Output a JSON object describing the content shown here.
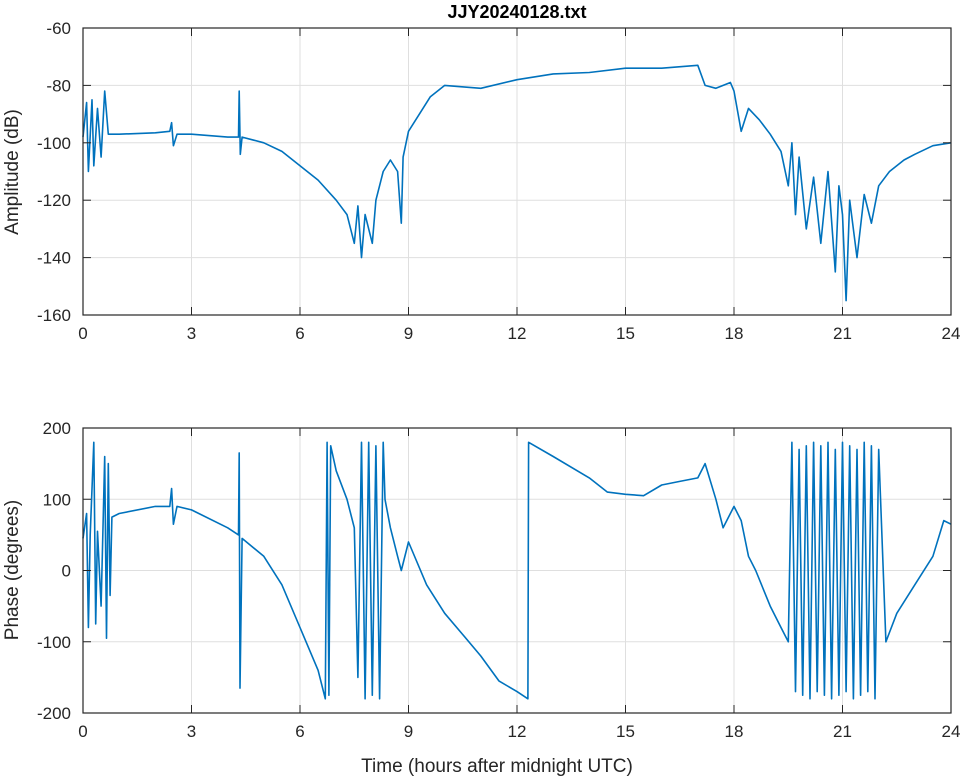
{
  "chart_data": [
    {
      "type": "line",
      "title": "JJY20240128.txt",
      "xlabel": "",
      "ylabel": "Amplitude (dB)",
      "xlim": [
        0,
        24
      ],
      "ylim": [
        -160,
        -60
      ],
      "xticks": [
        "0",
        "3",
        "6",
        "9",
        "12",
        "15",
        "18",
        "21",
        "24"
      ],
      "yticks": [
        "-60",
        "-80",
        "-100",
        "-120",
        "-140",
        "-160"
      ],
      "grid": true,
      "color": "#0072BD",
      "series": [
        {
          "name": "Amplitude",
          "x": [
            0,
            0.1,
            0.15,
            0.25,
            0.3,
            0.4,
            0.5,
            0.6,
            0.7,
            1,
            2,
            2.4,
            2.45,
            2.5,
            2.6,
            3,
            4,
            4.3,
            4.32,
            4.35,
            4.4,
            5,
            5.5,
            6,
            6.5,
            7,
            7.3,
            7.5,
            7.6,
            7.7,
            7.8,
            8,
            8.1,
            8.3,
            8.5,
            8.7,
            8.8,
            8.85,
            9,
            9.3,
            9.6,
            10,
            11,
            12,
            13,
            14,
            15,
            16,
            17,
            17.2,
            17.5,
            17.9,
            18,
            18.2,
            18.4,
            18.7,
            19,
            19.3,
            19.5,
            19.6,
            19.7,
            19.8,
            20,
            20.2,
            20.4,
            20.6,
            20.8,
            20.9,
            21,
            21.1,
            21.2,
            21.4,
            21.6,
            21.8,
            22,
            22.3,
            22.7,
            23,
            23.5,
            24
          ],
          "y": [
            -98,
            -86,
            -110,
            -85,
            -108,
            -88,
            -105,
            -82,
            -97,
            -97,
            -96.5,
            -96,
            -93,
            -101,
            -97,
            -97,
            -98,
            -98,
            -82,
            -104,
            -98,
            -100,
            -103,
            -108,
            -113,
            -120,
            -125,
            -135,
            -122,
            -140,
            -125,
            -135,
            -120,
            -110,
            -106,
            -110,
            -128,
            -105,
            -96,
            -90,
            -84,
            -80,
            -81,
            -78,
            -76,
            -75.5,
            -74,
            -74,
            -73,
            -80,
            -81,
            -79,
            -82,
            -96,
            -88,
            -92,
            -97,
            -103,
            -115,
            -100,
            -125,
            -105,
            -130,
            -112,
            -135,
            -110,
            -145,
            -115,
            -125,
            -155,
            -120,
            -140,
            -118,
            -128,
            -115,
            -110,
            -106,
            -104,
            -101,
            -100
          ]
        }
      ]
    },
    {
      "type": "line",
      "title": "",
      "xlabel": "Time (hours after midnight UTC)",
      "ylabel": "Phase (degrees)",
      "xlim": [
        0,
        24
      ],
      "ylim": [
        -200,
        200
      ],
      "xticks": [
        "0",
        "3",
        "6",
        "9",
        "12",
        "15",
        "18",
        "21",
        "24"
      ],
      "yticks": [
        "200",
        "100",
        "0",
        "-100",
        "-200"
      ],
      "grid": true,
      "color": "#0072BD",
      "series": [
        {
          "name": "Phase",
          "x": [
            0,
            0.1,
            0.15,
            0.2,
            0.3,
            0.35,
            0.4,
            0.5,
            0.6,
            0.65,
            0.7,
            0.75,
            0.8,
            1,
            2,
            2.4,
            2.45,
            2.5,
            2.6,
            3,
            4,
            4.3,
            4.32,
            4.34,
            4.4,
            5,
            5.5,
            6,
            6.5,
            6.7,
            6.75,
            6.8,
            6.85,
            7,
            7.3,
            7.5,
            7.6,
            7.7,
            7.8,
            7.9,
            8,
            8.1,
            8.2,
            8.3,
            8.35,
            8.5,
            8.7,
            8.8,
            9,
            9.5,
            10,
            10.5,
            11,
            11.5,
            12,
            12.3,
            12.32,
            13,
            14,
            14.5,
            15,
            15.5,
            16,
            16.5,
            17,
            17.2,
            17.5,
            17.7,
            18,
            18.2,
            18.4,
            18.6,
            19,
            19.3,
            19.5,
            19.6,
            19.7,
            19.8,
            19.9,
            20,
            20.1,
            20.2,
            20.3,
            20.4,
            20.5,
            20.6,
            20.7,
            20.8,
            20.9,
            21,
            21.1,
            21.2,
            21.3,
            21.4,
            21.5,
            21.6,
            21.7,
            21.8,
            21.9,
            22,
            22.2,
            22.5,
            23,
            23.5,
            23.8,
            24
          ],
          "y": [
            45,
            80,
            -80,
            50,
            180,
            -75,
            55,
            -50,
            160,
            -95,
            150,
            -35,
            75,
            80,
            90,
            90,
            115,
            65,
            90,
            85,
            60,
            50,
            165,
            -165,
            45,
            20,
            -20,
            -80,
            -140,
            -180,
            180,
            -175,
            175,
            140,
            100,
            60,
            -150,
            180,
            -180,
            180,
            -175,
            175,
            -180,
            180,
            100,
            60,
            20,
            0,
            40,
            -20,
            -60,
            -90,
            -120,
            -155,
            -170,
            -180,
            180,
            160,
            130,
            110,
            107,
            105,
            120,
            125,
            130,
            150,
            100,
            60,
            90,
            70,
            20,
            0,
            -50,
            -80,
            -100,
            180,
            -170,
            170,
            -175,
            175,
            -180,
            180,
            -170,
            175,
            -175,
            180,
            -180,
            170,
            -175,
            180,
            -170,
            175,
            -180,
            170,
            -175,
            180,
            -170,
            175,
            -180,
            170,
            -100,
            -60,
            -20,
            20,
            70,
            65
          ]
        }
      ]
    }
  ]
}
